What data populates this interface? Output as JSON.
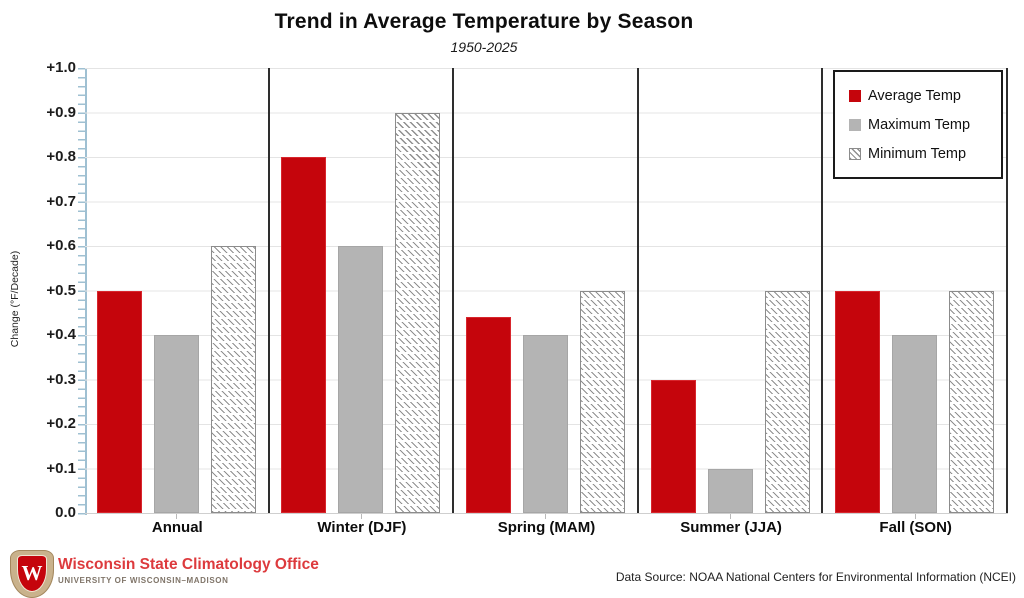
{
  "chart_data": {
    "type": "bar",
    "title": "Trend in Average Temperature by Season",
    "subtitle": "1950-2025",
    "ylabel": "Change (°F/Decade)",
    "xlabel": "",
    "ylim": [
      0,
      1.0
    ],
    "ytick_step": 0.1,
    "ytick_labels": [
      "+1.0",
      "+0.9",
      "+0.8",
      "+0.7",
      "+0.6",
      "+0.5",
      "+0.4",
      "+0.3",
      "+0.2",
      "+0.1",
      "0.0"
    ],
    "categories": [
      "Annual",
      "Winter (DJF)",
      "Spring (MAM)",
      "Summer (JJA)",
      "Fall (SON)"
    ],
    "series": [
      {
        "name": "Average Temp",
        "pattern": "solid",
        "color": "#c5050c",
        "border": "#d8262d",
        "values": [
          0.5,
          0.8,
          0.44,
          0.3,
          0.5
        ]
      },
      {
        "name": "Maximum Temp",
        "pattern": "solid",
        "color": "#b4b4b4",
        "border": "#a6a6a6",
        "values": [
          0.4,
          0.6,
          0.4,
          0.1,
          0.4
        ]
      },
      {
        "name": "Minimum Temp",
        "pattern": "hatch",
        "color": "#8f8f8f",
        "border": "#8c8c8c",
        "values": [
          0.6,
          0.9,
          0.5,
          0.5,
          0.5
        ]
      }
    ],
    "legend_position": "top-right",
    "grid": true,
    "panel_separators": true
  },
  "footer": {
    "logo_text": "W",
    "org_name": "Wisconsin State Climatology Office",
    "org_subname": "UNIVERSITY OF WISCONSIN–MADISON",
    "data_source": "Data Source: NOAA National Centers for Environmental Information (NCEI)"
  },
  "colors": {
    "accent_red": "#c5050c",
    "bar_gray": "#b4b4b4",
    "axis_blue": "#9fc0d2",
    "gridline": "#e4e4e4",
    "separator": "#2e2e2e"
  }
}
